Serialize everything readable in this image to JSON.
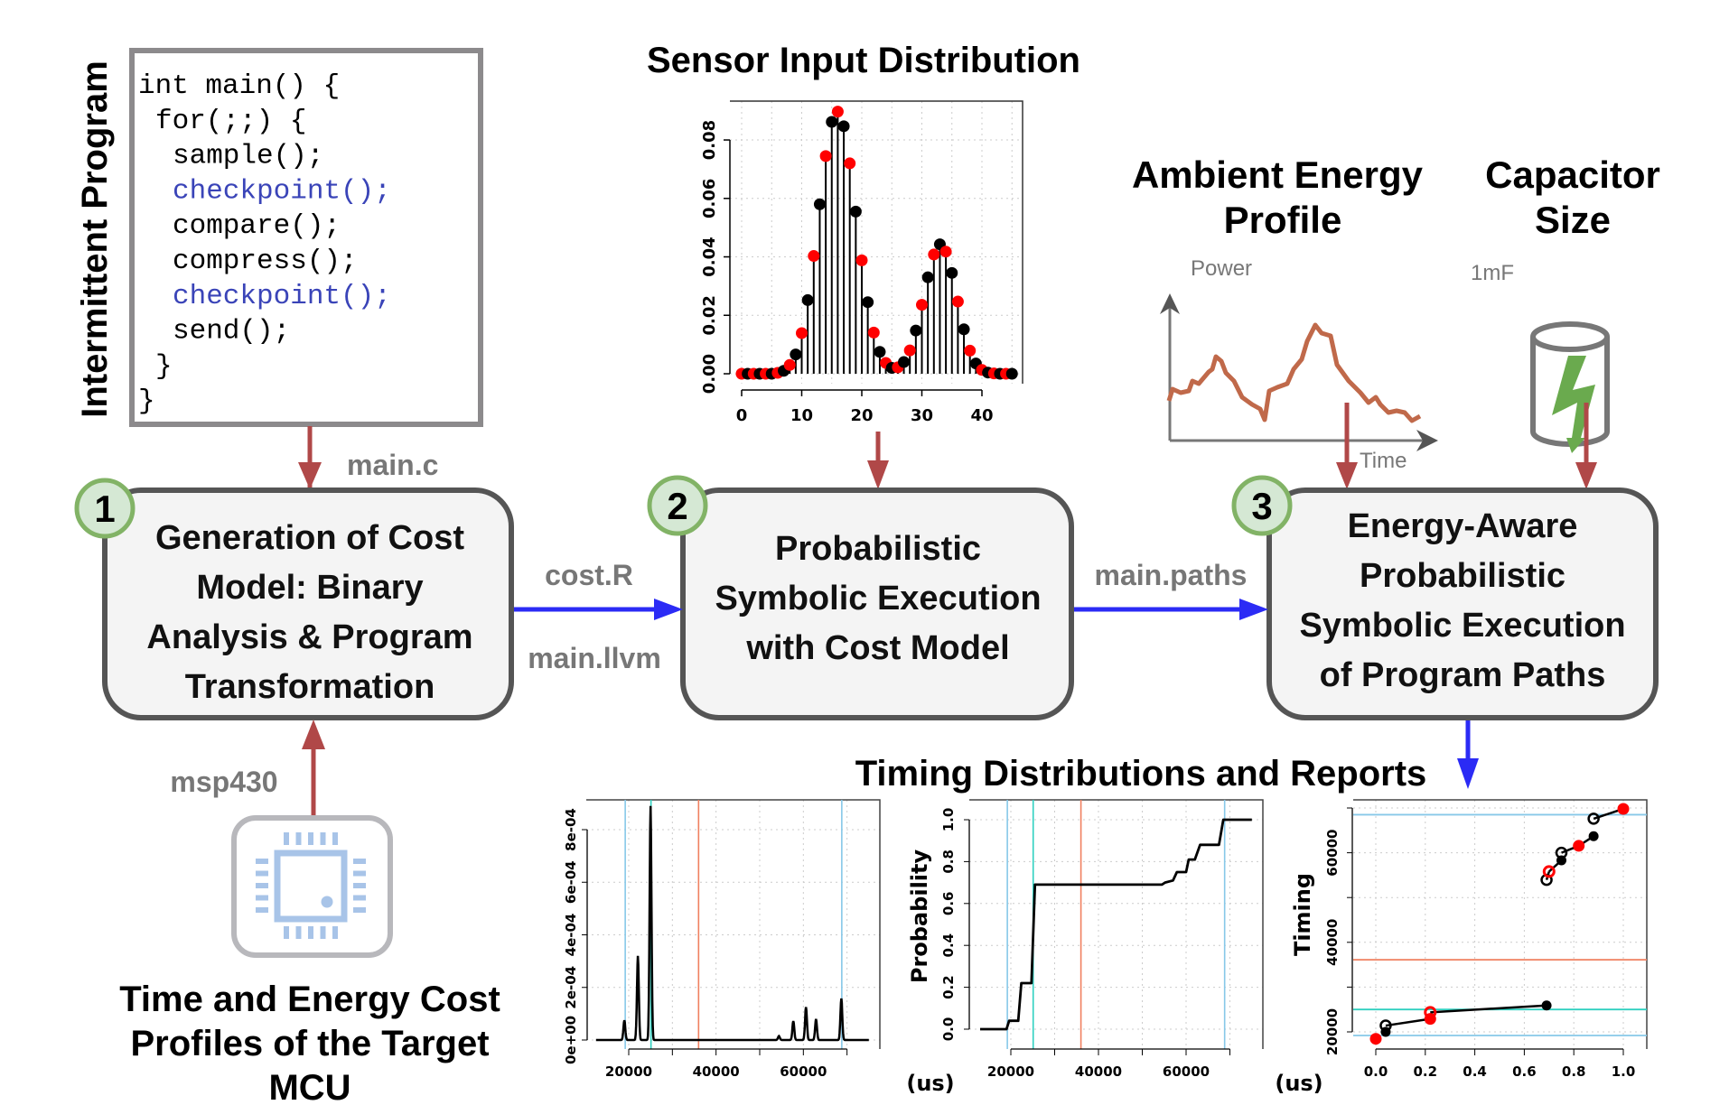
{
  "program": {
    "side_label": "Intermittent Program",
    "code_lines": [
      {
        "text": "int main() {",
        "indent": 0,
        "highlight": false
      },
      {
        "text": "for(;;) {",
        "indent": 1,
        "highlight": false
      },
      {
        "text": "sample();",
        "indent": 2,
        "highlight": false
      },
      {
        "text": "checkpoint();",
        "indent": 2,
        "highlight": true
      },
      {
        "text": "compare();",
        "indent": 2,
        "highlight": false
      },
      {
        "text": "compress();",
        "indent": 2,
        "highlight": false
      },
      {
        "text": "checkpoint();",
        "indent": 2,
        "highlight": true
      },
      {
        "text": "send();",
        "indent": 2,
        "highlight": false
      },
      {
        "text": "}",
        "indent": 1,
        "highlight": false
      },
      {
        "text": "}",
        "indent": 0,
        "highlight": false
      }
    ],
    "output_label": "main.c"
  },
  "steps": [
    {
      "number": "1",
      "lines": [
        "Generation of Cost",
        "Model: Binary",
        "Analysis & Program",
        "Transformation"
      ]
    },
    {
      "number": "2",
      "lines": [
        "Probabilistic",
        "Symbolic Execution",
        "with Cost Model"
      ]
    },
    {
      "number": "3",
      "lines": [
        "Energy-Aware",
        "Probabilistic",
        "Symbolic Execution",
        "of Program Paths"
      ]
    }
  ],
  "flows": {
    "cost_label": "cost.R",
    "llvm_label": "main.llvm",
    "paths_label": "main.paths",
    "mcu_label": "msp430"
  },
  "mcu": {
    "icon": "microchip-icon",
    "caption_lines": [
      "Time and Energy Cost",
      "Profiles of the Target",
      "MCU"
    ]
  },
  "energy": {
    "title_lines": [
      "Ambient Energy",
      "Profile"
    ],
    "y_label": "Power",
    "x_label": "Time"
  },
  "capacitor": {
    "title_lines": [
      "Capacitor",
      "Size"
    ],
    "value": "1mF",
    "icon": "capacitor-lightning-icon"
  },
  "sensor_title": "Sensor Input Distribution",
  "timing_title": "Timing Distributions and Reports",
  "colors": {
    "flow_red": "#b04848",
    "flow_blue": "#2b2bf5",
    "badge_fill": "#d5e8d4",
    "badge_stroke": "#82b366",
    "box_fill": "#f4f4f4",
    "box_stroke": "#555555",
    "checkpoint_blue": "#3a44b8",
    "energy_curve": "#c0694a",
    "bolt_green": "#6aaa4e",
    "chip_blue": "#a8c4e8",
    "ref_lightblue": "#87c8e8",
    "ref_teal": "#30d0c0",
    "ref_orange": "#f08060",
    "point_red": "#ff0000"
  },
  "chart_data": [
    {
      "type": "scatter",
      "style": "stem",
      "x": [
        0,
        1,
        2,
        3,
        4,
        5,
        6,
        7,
        8,
        9,
        10,
        11,
        12,
        13,
        14,
        15,
        16,
        17,
        18,
        19,
        20,
        21,
        22,
        23,
        24,
        25,
        26,
        27,
        28,
        29,
        30,
        31,
        32,
        33,
        34,
        35,
        36,
        37,
        38,
        39,
        40,
        41,
        42,
        43,
        44,
        45
      ],
      "values": [
        0,
        0,
        0,
        0,
        0,
        0,
        0.0003,
        0.001,
        0.003,
        0.0066,
        0.0139,
        0.0252,
        0.0403,
        0.058,
        0.0745,
        0.0862,
        0.0897,
        0.0847,
        0.072,
        0.0555,
        0.0388,
        0.0245,
        0.0141,
        0.0075,
        0.0037,
        0.002,
        0.0022,
        0.004,
        0.008,
        0.0148,
        0.0236,
        0.033,
        0.0408,
        0.0443,
        0.0418,
        0.0345,
        0.0247,
        0.0152,
        0.0079,
        0.0035,
        0.0013,
        0.0004,
        0.0001,
        0,
        0,
        0
      ],
      "point_colors": "alternating red (even x) / black (odd x)",
      "xlim": [
        0,
        45
      ],
      "ylim": [
        0,
        0.092
      ],
      "xticks": [
        "0",
        "10",
        "20",
        "30",
        "40"
      ],
      "yticks": [
        "0.00",
        "0.02",
        "0.04",
        "0.06",
        "0.08"
      ],
      "grid": true
    },
    {
      "type": "line",
      "x_unit": "(us)",
      "xlim": [
        12500,
        76000
      ],
      "ylim": [
        0,
        0.00092
      ],
      "xticks": [
        "20000",
        "40000",
        "60000"
      ],
      "yticks": [
        "0e+00",
        "2e-04",
        "4e-04",
        "6e-04",
        "8e-04"
      ],
      "peaks": [
        {
          "x": 19000,
          "y": 7.5e-05
        },
        {
          "x": 22100,
          "y": 0.00032
        },
        {
          "x": 25000,
          "y": 0.00089
        },
        {
          "x": 54400,
          "y": 1.5e-05
        },
        {
          "x": 57700,
          "y": 7.2e-05
        },
        {
          "x": 60600,
          "y": 0.000125
        },
        {
          "x": 62900,
          "y": 8e-05
        },
        {
          "x": 68700,
          "y": 0.000158
        }
      ],
      "reference_lines": [
        {
          "x": 19200,
          "color": "#87c8e8"
        },
        {
          "x": 25100,
          "color": "#30d0c0"
        },
        {
          "x": 36000,
          "color": "#f08060"
        },
        {
          "x": 68800,
          "color": "#87c8e8"
        }
      ],
      "grid": true
    },
    {
      "type": "line",
      "ylabel": "Probability",
      "x_unit": "(us)",
      "xlim": [
        12500,
        76000
      ],
      "ylim": [
        -0.09,
        1.09
      ],
      "xticks": [
        "20000",
        "40000",
        "60000"
      ],
      "yticks": [
        "0.0",
        "0.2",
        "0.4",
        "0.6",
        "0.8",
        "1.0"
      ],
      "steps": [
        {
          "x": 13000,
          "y": 0
        },
        {
          "x": 19000,
          "y": 0
        },
        {
          "x": 19600,
          "y": 0.04
        },
        {
          "x": 21700,
          "y": 0.04
        },
        {
          "x": 22400,
          "y": 0.22
        },
        {
          "x": 24700,
          "y": 0.22
        },
        {
          "x": 25500,
          "y": 0.69
        },
        {
          "x": 54500,
          "y": 0.69
        },
        {
          "x": 55200,
          "y": 0.7
        },
        {
          "x": 57000,
          "y": 0.71
        },
        {
          "x": 57900,
          "y": 0.75
        },
        {
          "x": 60000,
          "y": 0.75
        },
        {
          "x": 60600,
          "y": 0.81
        },
        {
          "x": 62000,
          "y": 0.81
        },
        {
          "x": 63200,
          "y": 0.88
        },
        {
          "x": 67500,
          "y": 0.88
        },
        {
          "x": 68500,
          "y": 1.0
        },
        {
          "x": 75000,
          "y": 1.0
        }
      ],
      "reference_lines": [
        {
          "x": 19200,
          "color": "#87c8e8"
        },
        {
          "x": 25100,
          "color": "#30d0c0"
        },
        {
          "x": 36000,
          "color": "#f08060"
        },
        {
          "x": 68800,
          "color": "#87c8e8"
        }
      ],
      "grid": true
    },
    {
      "type": "scatter",
      "ylabel": "Timing",
      "xlim": [
        -0.09,
        1.09
      ],
      "ylim": [
        16000,
        71500
      ],
      "xticks": [
        "0.0",
        "0.2",
        "0.4",
        "0.6",
        "0.8",
        "1.0"
      ],
      "yticks": [
        "20000",
        "40000",
        "60000"
      ],
      "points": [
        {
          "x": 0.0,
          "y": 18450,
          "kind": "red"
        },
        {
          "x": 0.04,
          "y": 20000,
          "kind": "filled"
        },
        {
          "x": 0.04,
          "y": 21400,
          "kind": "open"
        },
        {
          "x": 0.22,
          "y": 22900,
          "kind": "red"
        },
        {
          "x": 0.22,
          "y": 24370,
          "kind": "red-open"
        },
        {
          "x": 0.69,
          "y": 25900,
          "kind": "filled"
        },
        {
          "x": 0.69,
          "y": 53950,
          "kind": "open"
        },
        {
          "x": 0.7,
          "y": 55800,
          "kind": "red-open"
        },
        {
          "x": 0.75,
          "y": 58300,
          "kind": "filled"
        },
        {
          "x": 0.75,
          "y": 60000,
          "kind": "open"
        },
        {
          "x": 0.82,
          "y": 61550,
          "kind": "red"
        },
        {
          "x": 0.88,
          "y": 63700,
          "kind": "filled"
        },
        {
          "x": 0.88,
          "y": 67600,
          "kind": "open"
        },
        {
          "x": 1.0,
          "y": 69800,
          "kind": "red"
        }
      ],
      "segments": [
        [
          [
            0.04,
            21400
          ],
          [
            0.22,
            22900
          ]
        ],
        [
          [
            0.22,
            24370
          ],
          [
            0.69,
            25900
          ]
        ],
        [
          [
            0.69,
            53950
          ],
          [
            0.7,
            55800
          ]
        ],
        [
          [
            0.7,
            55800
          ],
          [
            0.75,
            58300
          ]
        ],
        [
          [
            0.75,
            60000
          ],
          [
            0.82,
            61550
          ]
        ],
        [
          [
            0.82,
            61550
          ],
          [
            0.88,
            63700
          ]
        ],
        [
          [
            0.88,
            67600
          ],
          [
            1.0,
            69800
          ]
        ]
      ],
      "reference_lines": [
        {
          "y": 19200,
          "color": "#87c8e8"
        },
        {
          "y": 25000,
          "color": "#30d0c0"
        },
        {
          "y": 36100,
          "color": "#f08060"
        },
        {
          "y": 68500,
          "color": "#87c8e8"
        }
      ],
      "grid": true
    }
  ]
}
